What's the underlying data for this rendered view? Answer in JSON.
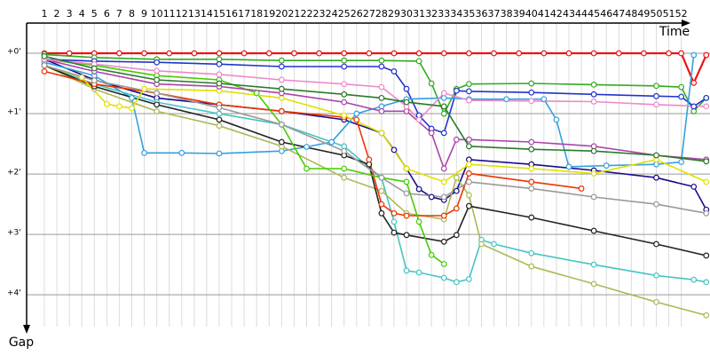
{
  "chart_data": {
    "type": "line",
    "x_label": "Time",
    "y_label": "Gap",
    "xlim": [
      -0.42,
      54.3
    ],
    "ylim": [
      -0.5,
      4.6
    ],
    "y_inverted": true,
    "grid": true,
    "xticks": [
      1,
      2,
      3,
      4,
      5,
      6,
      7,
      8,
      9,
      10,
      11,
      12,
      13,
      14,
      15,
      16,
      17,
      18,
      19,
      20,
      21,
      22,
      23,
      24,
      25,
      26,
      27,
      28,
      29,
      30,
      31,
      32,
      33,
      34,
      35,
      36,
      37,
      38,
      39,
      40,
      41,
      42,
      43,
      44,
      45,
      46,
      47,
      48,
      49,
      50,
      51,
      52
    ],
    "yticks": [
      {
        "value": 0,
        "label": "+0'"
      },
      {
        "value": 1,
        "label": "+1'"
      },
      {
        "value": 2,
        "label": "+2'"
      },
      {
        "value": 3,
        "label": "+3'"
      },
      {
        "value": 4,
        "label": "+4'"
      }
    ],
    "series": [
      {
        "color": "#ee1111",
        "x": [
          1,
          3,
          5,
          7,
          9,
          11,
          13,
          15,
          17,
          19,
          21,
          23,
          25,
          27,
          29,
          31,
          33,
          35,
          37,
          39,
          41,
          43,
          45,
          47,
          49,
          51,
          52,
          53,
          54
        ],
        "values": [
          0,
          0,
          0,
          0,
          0,
          0,
          0,
          0,
          0,
          0,
          0,
          0,
          0,
          0,
          0,
          0,
          0,
          0,
          0,
          0,
          0,
          0,
          0,
          0,
          0,
          0,
          0,
          0.49,
          0.03
        ]
      },
      {
        "color": "#33aa22",
        "x": [
          1,
          5,
          10,
          15,
          20,
          25,
          28,
          31,
          32,
          33,
          34,
          35,
          40,
          45,
          50,
          52,
          53,
          54
        ],
        "values": [
          0.02,
          0.07,
          0.1,
          0.1,
          0.12,
          0.12,
          0.12,
          0.13,
          0.5,
          1.0,
          0.59,
          0.51,
          0.5,
          0.52,
          0.54,
          0.56,
          0.96,
          0.74
        ]
      },
      {
        "color": "#2233cc",
        "x": [
          1,
          5,
          10,
          15,
          20,
          25,
          28,
          29,
          30,
          31,
          32,
          33,
          34,
          35,
          40,
          45,
          50,
          52,
          53,
          54
        ],
        "values": [
          0.1,
          0.13,
          0.15,
          0.18,
          0.22,
          0.22,
          0.22,
          0.3,
          0.59,
          1.03,
          1.25,
          1.32,
          0.62,
          0.63,
          0.65,
          0.68,
          0.71,
          0.72,
          0.88,
          0.74
        ]
      },
      {
        "color": "#1a0a8a",
        "x": [
          1,
          5,
          10,
          15,
          20,
          25,
          28,
          29,
          30,
          31,
          32,
          33,
          34,
          35,
          40,
          45,
          50,
          53,
          54
        ],
        "values": [
          0.1,
          0.44,
          0.74,
          0.85,
          0.96,
          1.1,
          1.32,
          1.6,
          1.91,
          2.25,
          2.38,
          2.43,
          2.28,
          1.76,
          1.84,
          1.94,
          2.06,
          2.21,
          2.59
        ]
      },
      {
        "color": "#33a0e0",
        "x": [
          1,
          5,
          8,
          9,
          12,
          15,
          20,
          22,
          24,
          26,
          28,
          30,
          33,
          35,
          38,
          41,
          42,
          43,
          46,
          50,
          52,
          53
        ],
        "values": [
          0.15,
          0.37,
          0.74,
          1.65,
          1.65,
          1.66,
          1.62,
          1.55,
          1.47,
          1.0,
          0.88,
          0.76,
          0.74,
          0.76,
          0.76,
          0.76,
          1.1,
          1.88,
          1.86,
          1.84,
          1.8,
          0.03
        ]
      },
      {
        "color": "#44c4c4",
        "x": [
          1,
          5,
          10,
          15,
          20,
          25,
          28,
          29,
          30,
          31,
          33,
          34,
          35,
          36,
          37,
          40,
          45,
          50,
          53,
          54
        ],
        "values": [
          0.2,
          0.51,
          0.81,
          1.0,
          1.18,
          1.54,
          2.06,
          2.79,
          3.6,
          3.63,
          3.72,
          3.79,
          3.74,
          3.09,
          3.16,
          3.31,
          3.5,
          3.68,
          3.75,
          3.79
        ]
      },
      {
        "color": "#aabb55",
        "x": [
          1,
          5,
          10,
          15,
          20,
          25,
          28,
          30,
          33,
          34,
          35,
          36,
          40,
          45,
          50,
          54
        ],
        "values": [
          0.2,
          0.59,
          0.96,
          1.2,
          1.54,
          2.06,
          2.28,
          2.65,
          2.75,
          2.06,
          2.35,
          3.16,
          3.53,
          3.82,
          4.12,
          4.34
        ]
      },
      {
        "color": "#222222",
        "x": [
          1,
          5,
          10,
          15,
          20,
          25,
          27,
          28,
          29,
          30,
          33,
          34,
          35,
          40,
          45,
          50,
          54
        ],
        "values": [
          0.2,
          0.55,
          0.85,
          1.1,
          1.47,
          1.69,
          1.84,
          2.65,
          2.97,
          3.01,
          3.12,
          3.01,
          2.53,
          2.72,
          2.94,
          3.16,
          3.35
        ]
      },
      {
        "color": "#ee3300",
        "x": [
          1,
          5,
          10,
          15,
          20,
          25,
          26,
          27,
          28,
          29,
          30,
          33,
          34,
          35,
          40,
          44
        ],
        "values": [
          0.3,
          0.51,
          0.66,
          0.85,
          0.96,
          1.06,
          1.1,
          1.76,
          2.5,
          2.65,
          2.69,
          2.69,
          2.57,
          1.99,
          2.13,
          2.24
        ]
      },
      {
        "color": "#44cc00",
        "x": [
          1,
          5,
          10,
          15,
          18,
          20,
          22,
          25,
          28,
          30,
          31,
          32,
          33
        ],
        "values": [
          0.1,
          0.2,
          0.37,
          0.44,
          0.66,
          1.18,
          1.91,
          1.91,
          2.06,
          2.13,
          2.79,
          3.34,
          3.49
        ]
      },
      {
        "color": "#e0e000",
        "x": [
          1,
          4,
          6,
          7,
          8,
          9,
          15,
          20,
          25,
          28,
          30,
          33,
          35,
          40,
          45,
          50,
          54
        ],
        "values": [
          0.2,
          0.4,
          0.84,
          0.88,
          0.91,
          0.59,
          0.62,
          0.74,
          1.03,
          1.32,
          1.91,
          2.13,
          1.84,
          1.91,
          1.99,
          1.76,
          2.13
        ]
      },
      {
        "color": "#aa44aa",
        "x": [
          1,
          5,
          10,
          15,
          20,
          25,
          28,
          30,
          32,
          33,
          34,
          35,
          40,
          45,
          50,
          54
        ],
        "values": [
          0.1,
          0.3,
          0.51,
          0.55,
          0.66,
          0.81,
          0.96,
          0.96,
          1.32,
          1.91,
          1.43,
          1.43,
          1.47,
          1.54,
          1.69,
          1.76
        ]
      },
      {
        "color": "#ee88cc",
        "x": [
          1,
          5,
          10,
          15,
          20,
          25,
          28,
          30,
          31,
          33,
          35,
          40,
          45,
          50,
          54
        ],
        "values": [
          0.1,
          0.18,
          0.29,
          0.35,
          0.44,
          0.51,
          0.56,
          0.88,
          1.1,
          0.66,
          0.78,
          0.79,
          0.8,
          0.85,
          0.88
        ]
      },
      {
        "color": "#999999",
        "x": [
          1,
          5,
          10,
          15,
          20,
          25,
          28,
          30,
          33,
          35,
          40,
          45,
          50,
          54
        ],
        "values": [
          0.2,
          0.45,
          0.66,
          0.9,
          1.18,
          1.62,
          2.06,
          2.32,
          2.38,
          2.13,
          2.24,
          2.38,
          2.5,
          2.65
        ]
      },
      {
        "color": "#2a7a2a",
        "x": [
          1,
          5,
          10,
          15,
          20,
          25,
          28,
          30,
          33,
          35,
          40,
          45,
          50,
          54
        ],
        "values": [
          0.05,
          0.25,
          0.44,
          0.5,
          0.59,
          0.68,
          0.74,
          0.81,
          0.88,
          1.54,
          1.59,
          1.62,
          1.69,
          1.79
        ]
      }
    ]
  }
}
